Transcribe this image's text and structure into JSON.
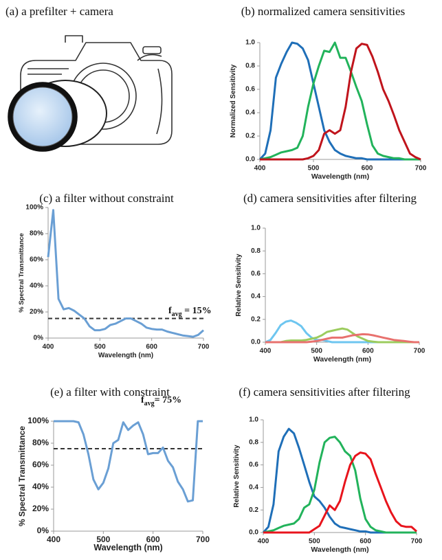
{
  "image_panel": {
    "caption": "(a) a prefilter + camera"
  },
  "chart_data": [
    {
      "type": "line",
      "caption": "(b) normalized camera sensitivities",
      "xlabel": "Wavelength (nm)",
      "ylabel": "Normalized Sensitivity",
      "x": [
        400,
        410,
        420,
        430,
        440,
        450,
        460,
        470,
        480,
        490,
        500,
        510,
        520,
        530,
        540,
        550,
        560,
        570,
        580,
        590,
        600,
        610,
        620,
        630,
        640,
        650,
        660,
        670,
        680,
        690,
        700
      ],
      "xlim": [
        400,
        700
      ],
      "xticks": [
        400,
        500,
        600,
        700
      ],
      "ylim": [
        0,
        1
      ],
      "yticks": [
        {
          "value": 0,
          "label": "0.0"
        },
        0.2,
        0.4,
        0.6,
        0.8,
        {
          "value": 1,
          "label": "1.0"
        }
      ],
      "series": [
        {
          "color": "#1f6fb8",
          "values": [
            0,
            0.05,
            0.25,
            0.7,
            0.82,
            0.92,
            1.0,
            0.99,
            0.95,
            0.85,
            0.65,
            0.45,
            0.25,
            0.15,
            0.08,
            0.05,
            0.03,
            0.02,
            0.01,
            0.01,
            0,
            0,
            0,
            0,
            0,
            0,
            0,
            0,
            0,
            0,
            0
          ]
        },
        {
          "color": "#22b35b",
          "values": [
            0,
            0.01,
            0.02,
            0.04,
            0.06,
            0.07,
            0.08,
            0.1,
            0.2,
            0.45,
            0.65,
            0.8,
            0.93,
            0.92,
            1.0,
            0.87,
            0.87,
            0.75,
            0.62,
            0.5,
            0.3,
            0.12,
            0.05,
            0.03,
            0.02,
            0.01,
            0.01,
            0,
            0,
            0,
            0
          ]
        },
        {
          "color": "#c0141c",
          "values": [
            0,
            0,
            0,
            0,
            0,
            0,
            0,
            0,
            0,
            0.01,
            0.03,
            0.08,
            0.22,
            0.25,
            0.22,
            0.25,
            0.45,
            0.75,
            0.95,
            0.99,
            0.98,
            0.88,
            0.75,
            0.6,
            0.5,
            0.38,
            0.25,
            0.15,
            0.05,
            0.02,
            0
          ]
        }
      ]
    },
    {
      "type": "line",
      "caption": "(c) a filter without constraint",
      "xlabel": "Wavelength (nm)",
      "ylabel": "% Spectral Transmittance",
      "x": [
        400,
        410,
        420,
        430,
        440,
        450,
        460,
        470,
        480,
        490,
        500,
        510,
        520,
        530,
        540,
        550,
        560,
        570,
        580,
        590,
        600,
        610,
        620,
        630,
        640,
        650,
        660,
        670,
        680,
        690,
        700
      ],
      "xlim": [
        400,
        700
      ],
      "xticks": [
        400,
        500,
        600,
        700
      ],
      "ylim": [
        0,
        100
      ],
      "yticks": [
        {
          "value": 0,
          "label": "0%"
        },
        {
          "value": 20,
          "label": "20%"
        },
        {
          "value": 40,
          "label": "40%"
        },
        {
          "value": 60,
          "label": "60%"
        },
        {
          "value": 80,
          "label": "80%"
        },
        {
          "value": 100,
          "label": "100%"
        }
      ],
      "reference_line": 15,
      "annotation": {
        "text": "f",
        "subscript": "avg",
        "suffix": " = 15%"
      },
      "series": [
        {
          "color": "#6a9fd4",
          "values": [
            62,
            98,
            30,
            22,
            23,
            21,
            18,
            15,
            9,
            6,
            6,
            7,
            10,
            11,
            13,
            15,
            15,
            13,
            11,
            8,
            7,
            6.5,
            6.5,
            5,
            4,
            3,
            2,
            1.5,
            1,
            2.5,
            6
          ]
        }
      ]
    },
    {
      "type": "line",
      "caption": "(d) camera sensitivities after filtering",
      "xlabel": "Wavelength (nm)",
      "ylabel": "Relative Sensitivity",
      "x": [
        400,
        410,
        420,
        430,
        440,
        450,
        460,
        470,
        480,
        490,
        500,
        510,
        520,
        530,
        540,
        550,
        560,
        570,
        580,
        590,
        600,
        610,
        620,
        630,
        640,
        650,
        660,
        670,
        680,
        690,
        700
      ],
      "xlim": [
        400,
        700
      ],
      "xticks": [
        400,
        500,
        600,
        700
      ],
      "ylim": [
        0,
        1
      ],
      "yticks": [
        {
          "value": 0,
          "label": "0.0"
        },
        0.2,
        0.4,
        0.6,
        0.8,
        {
          "value": 1,
          "label": "1.0"
        }
      ],
      "series": [
        {
          "color": "#6ec6f0",
          "values": [
            0,
            0.02,
            0.08,
            0.15,
            0.18,
            0.19,
            0.17,
            0.14,
            0.08,
            0.04,
            0.02,
            0.02,
            0.01,
            0,
            0,
            0,
            0,
            0,
            0,
            0,
            0,
            0,
            0,
            0,
            0,
            0,
            0,
            0,
            0,
            0,
            0
          ]
        },
        {
          "color": "#9ccc5e",
          "values": [
            0,
            0,
            0,
            0,
            0.01,
            0.015,
            0.015,
            0.015,
            0.02,
            0.03,
            0.04,
            0.06,
            0.09,
            0.1,
            0.11,
            0.12,
            0.11,
            0.08,
            0.05,
            0.03,
            0.01,
            0.005,
            0,
            0,
            0,
            0,
            0,
            0,
            0,
            0,
            0
          ]
        },
        {
          "color": "#e8716e",
          "values": [
            0,
            0,
            0,
            0,
            0,
            0,
            0,
            0,
            0,
            0.005,
            0.01,
            0.02,
            0.03,
            0.04,
            0.04,
            0.04,
            0.05,
            0.06,
            0.065,
            0.07,
            0.068,
            0.06,
            0.05,
            0.04,
            0.03,
            0.02,
            0.015,
            0.01,
            0.005,
            0,
            0
          ]
        }
      ]
    },
    {
      "type": "line",
      "caption": "(e) a filter with constraint",
      "xlabel": "Wavelength (nm)",
      "ylabel": "% Spectral Transmittance",
      "x": [
        400,
        410,
        420,
        430,
        440,
        450,
        460,
        470,
        480,
        490,
        500,
        510,
        520,
        530,
        540,
        550,
        560,
        570,
        580,
        590,
        600,
        610,
        620,
        630,
        640,
        650,
        660,
        670,
        680,
        690,
        700
      ],
      "xlim": [
        400,
        700
      ],
      "xticks": [
        400,
        500,
        600,
        700
      ],
      "ylim": [
        0,
        100
      ],
      "yticks": [
        {
          "value": 0,
          "label": "0%"
        },
        {
          "value": 20,
          "label": "20%"
        },
        {
          "value": 40,
          "label": "40%"
        },
        {
          "value": 60,
          "label": "60%"
        },
        {
          "value": 80,
          "label": "80%"
        },
        {
          "value": 100,
          "label": "100%"
        }
      ],
      "reference_line": 75,
      "annotation": {
        "text": "f",
        "subscript": "avg",
        "suffix": "= 75%"
      },
      "series": [
        {
          "color": "#6a9fd4",
          "values": [
            100,
            100,
            100,
            100,
            100,
            99,
            88,
            70,
            47,
            38,
            44,
            57,
            80,
            83,
            99,
            92,
            96,
            99,
            88,
            70,
            71,
            71,
            76,
            64,
            58,
            45,
            38,
            27,
            28,
            100,
            100
          ]
        }
      ]
    },
    {
      "type": "line",
      "caption": "(f) camera sensitivities after filtering",
      "xlabel": "Wavelength (nm)",
      "ylabel": "Relative Sensitivity",
      "x": [
        400,
        410,
        420,
        430,
        440,
        450,
        460,
        470,
        480,
        490,
        500,
        510,
        520,
        530,
        540,
        550,
        560,
        570,
        580,
        590,
        600,
        610,
        620,
        630,
        640,
        650,
        660,
        670,
        680,
        690,
        700
      ],
      "xlim": [
        400,
        700
      ],
      "xticks": [
        400,
        500,
        600,
        700
      ],
      "ylim": [
        0,
        1
      ],
      "yticks": [
        {
          "value": 0,
          "label": "0.0"
        },
        0.2,
        0.4,
        0.6,
        0.8,
        {
          "value": 1,
          "label": "1.0"
        }
      ],
      "series": [
        {
          "color": "#1f6fb8",
          "values": [
            0,
            0.05,
            0.25,
            0.72,
            0.85,
            0.92,
            0.88,
            0.75,
            0.6,
            0.45,
            0.32,
            0.28,
            0.22,
            0.14,
            0.08,
            0.05,
            0.04,
            0.03,
            0.02,
            0.01,
            0.01,
            0,
            0,
            0,
            0,
            0,
            0,
            0,
            0,
            0,
            0
          ]
        },
        {
          "color": "#22b35b",
          "values": [
            0,
            0.01,
            0.02,
            0.04,
            0.06,
            0.07,
            0.08,
            0.12,
            0.22,
            0.25,
            0.38,
            0.62,
            0.8,
            0.84,
            0.85,
            0.8,
            0.72,
            0.68,
            0.55,
            0.3,
            0.12,
            0.05,
            0.02,
            0.01,
            0,
            0,
            0,
            0,
            0,
            0,
            0
          ]
        },
        {
          "color": "#e8141c",
          "values": [
            0,
            0,
            0,
            0,
            0,
            0,
            0,
            0,
            0,
            0,
            0.03,
            0.06,
            0.15,
            0.24,
            0.2,
            0.28,
            0.45,
            0.6,
            0.68,
            0.71,
            0.7,
            0.65,
            0.52,
            0.4,
            0.28,
            0.18,
            0.1,
            0.06,
            0.05,
            0.05,
            0.01
          ]
        }
      ]
    }
  ]
}
